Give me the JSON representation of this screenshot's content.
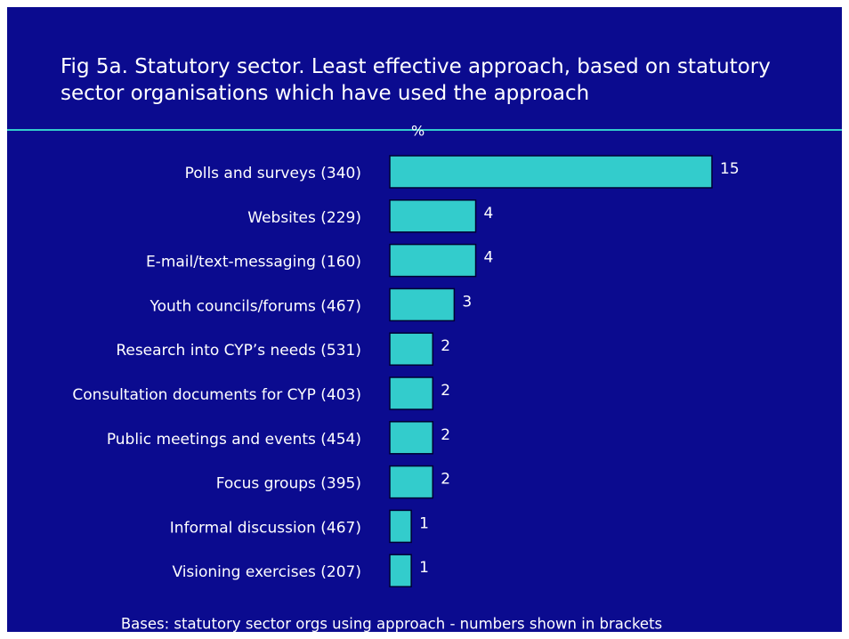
{
  "chart_data": {
    "type": "bar",
    "orientation": "horizontal",
    "title": "Fig 5a. Statutory sector. Least effective approach, based on statutory sector organisations which have used the approach",
    "value_axis_label": "%",
    "categories": [
      "Polls and surveys (340)",
      "Websites (229)",
      "E-mail/text-messaging (160)",
      "Youth councils/forums (467)",
      "Research into CYP’s needs (531)",
      "Consultation documents for CYP (403)",
      "Public meetings and events (454)",
      "Focus groups (395)",
      "Informal discussion (467)",
      "Visioning exercises (207)"
    ],
    "values": [
      15,
      4,
      4,
      3,
      2,
      2,
      2,
      2,
      1,
      1
    ],
    "color": "#33cccc",
    "footnote": "Bases: statutory sector orgs using approach - numbers shown in brackets"
  }
}
